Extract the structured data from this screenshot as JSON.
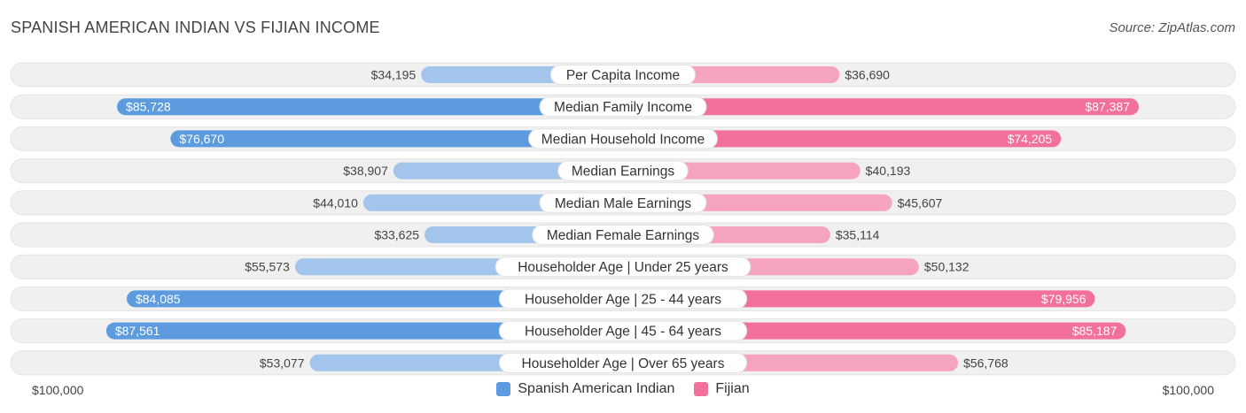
{
  "header": {
    "title": "SPANISH AMERICAN INDIAN VS FIJIAN INCOME",
    "source": "Source: ZipAtlas.com"
  },
  "colors": {
    "left_dark": "#5b9bde",
    "left_light": "#a3c4eb",
    "right_dark": "#f2709c",
    "right_light": "#f6a3bf",
    "track": "#f0f0f0"
  },
  "chart_data": {
    "type": "bar",
    "orientation": "diverging-horizontal",
    "max": 100000,
    "axis_left_label": "$100,000",
    "axis_right_label": "$100,000",
    "legend_position": "bottom-center",
    "categories": [
      "Per Capita Income",
      "Median Family Income",
      "Median Household Income",
      "Median Earnings",
      "Median Male Earnings",
      "Median Female Earnings",
      "Householder Age | Under 25 years",
      "Householder Age | 25 - 44 years",
      "Householder Age | 45 - 64 years",
      "Householder Age | Over 65 years"
    ],
    "series": [
      {
        "name": "Spanish American Indian",
        "values": [
          34195,
          85728,
          76670,
          38907,
          44010,
          33625,
          55573,
          84085,
          87561,
          53077
        ],
        "labels": [
          "$34,195",
          "$85,728",
          "$76,670",
          "$38,907",
          "$44,010",
          "$33,625",
          "$55,573",
          "$84,085",
          "$87,561",
          "$53,077"
        ]
      },
      {
        "name": "Fijian",
        "values": [
          36690,
          87387,
          74205,
          40193,
          45607,
          35114,
          50132,
          79956,
          85187,
          56768
        ],
        "labels": [
          "$36,690",
          "$87,387",
          "$74,205",
          "$40,193",
          "$45,607",
          "$35,114",
          "$50,132",
          "$79,956",
          "$85,187",
          "$56,768"
        ]
      }
    ]
  }
}
